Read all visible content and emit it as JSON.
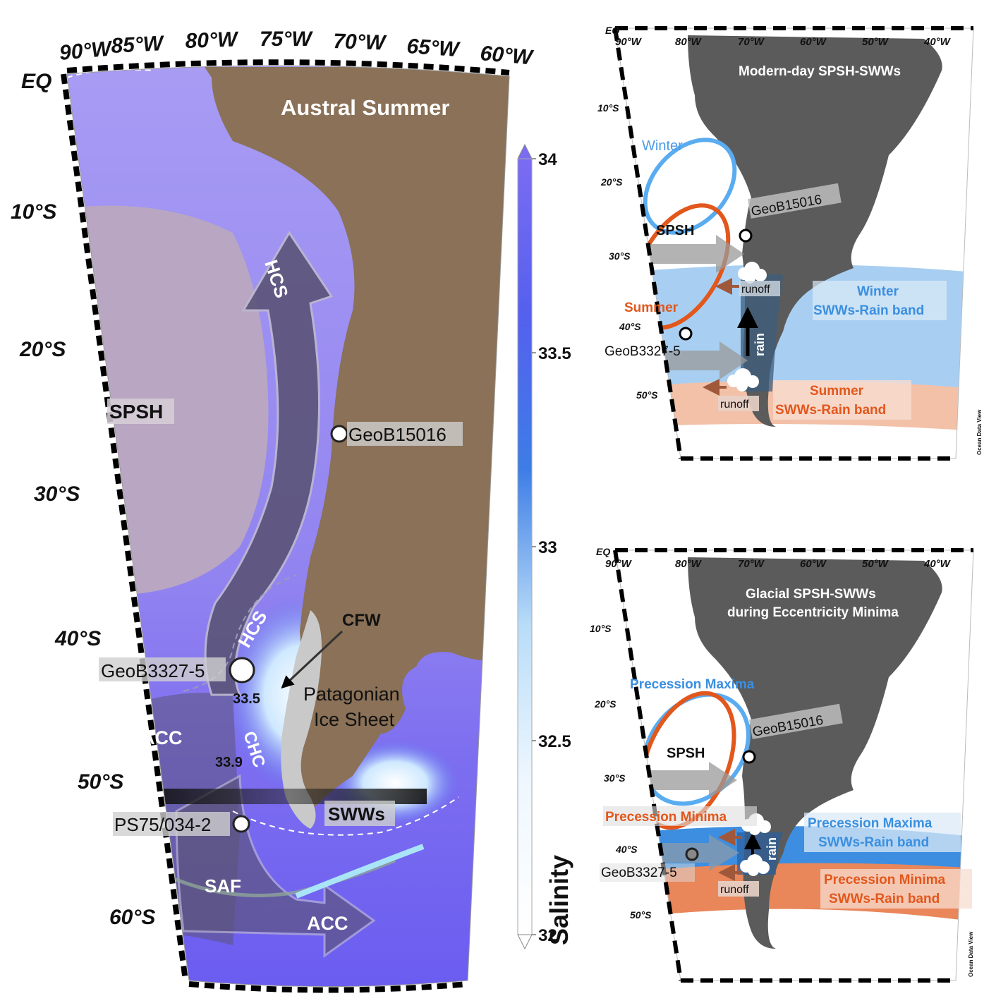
{
  "left_map": {
    "title": "Austral  Summer",
    "lon_labels": [
      "90°W",
      "85°W",
      "80°W",
      "75°W",
      "70°W",
      "65°W",
      "60°W"
    ],
    "eq_label": "EQ",
    "lat_labels": [
      "10°S",
      "20°S",
      "30°S",
      "40°S",
      "50°S",
      "60°S"
    ],
    "features": {
      "spsh": "SPSH",
      "hcs_top": "HCS",
      "hcs_mid": "HCS",
      "chc": "CHC",
      "acc_west": "ACC",
      "acc_south": "ACC",
      "saf": "SAF",
      "swws": "SWWs",
      "cfw": "CFW",
      "ice_sheet_line1": "Patagonian",
      "ice_sheet_line2": "Ice Sheet",
      "contour_33_5": "33.5",
      "contour_33_9": "33.9"
    },
    "sites": [
      "GeoB15016",
      "GeoB3327-5",
      "PS75/034-2"
    ],
    "colors": {
      "land": "#8a7157",
      "ocean_high": "#8f7cf0",
      "spsh_fill": "#b9a6c2",
      "current_arrow": "#5b5478"
    }
  },
  "colorbar": {
    "title": "Salinity",
    "ticks": [
      "34",
      "33.5",
      "33",
      "32.5",
      "32"
    ],
    "values": [
      34,
      33.5,
      33,
      32.5,
      32
    ],
    "colors": {
      "max": "#7b6cf2",
      "mid": "#3d7de6",
      "min": "#ffffff"
    }
  },
  "top_right_map": {
    "title": "Modern-day SPSH-SWWs",
    "lon_labels": [
      "90°W",
      "80°W",
      "70°W",
      "60°W",
      "50°W",
      "40°W"
    ],
    "eq_label": "EQ",
    "lat_labels": [
      "10°S",
      "20°S",
      "30°S",
      "40°S",
      "50°S"
    ],
    "labels": {
      "winter": "Winter",
      "summer": "Summer",
      "spsh": "SPSH",
      "runoff_upper": "runoff",
      "runoff_lower": "runoff",
      "rain": "rain",
      "winter_band_line1": "Winter",
      "winter_band_line2": "SWWs-Rain band",
      "summer_band_line1": "Summer",
      "summer_band_line2": "SWWs-Rain band",
      "credit": "Ocean Data View"
    },
    "sites": [
      "GeoB15016",
      "GeoB3327-5"
    ],
    "colors": {
      "winter": "#5aacf0",
      "summer": "#e2571c",
      "land": "#5b5b5b"
    }
  },
  "bottom_right_map": {
    "title_line1": "Glacial SPSH-SWWs",
    "title_line2": "during Eccentricity Minima",
    "lon_labels": [
      "90°W",
      "80°W",
      "70°W",
      "60°W",
      "50°W",
      "40°W"
    ],
    "eq_label": "EQ",
    "lat_labels": [
      "10°S",
      "20°S",
      "30°S",
      "40°S",
      "50°S"
    ],
    "labels": {
      "precession_maxima": "Precession Maxima",
      "precession_minima": "Precession Minima",
      "spsh": "SPSH",
      "runoff": "runoff",
      "rain": "rain",
      "max_band_line1": "Precession Maxima",
      "max_band_line2": "SWWs-Rain band",
      "min_band_line1": "Precession Minima",
      "min_band_line2": "SWWs-Rain band",
      "credit": "Ocean Data View"
    },
    "sites": [
      "GeoB15016",
      "GeoB3327-5"
    ],
    "colors": {
      "maxima": "#5aacf0",
      "minima": "#e2571c",
      "land": "#5b5b5b"
    }
  }
}
